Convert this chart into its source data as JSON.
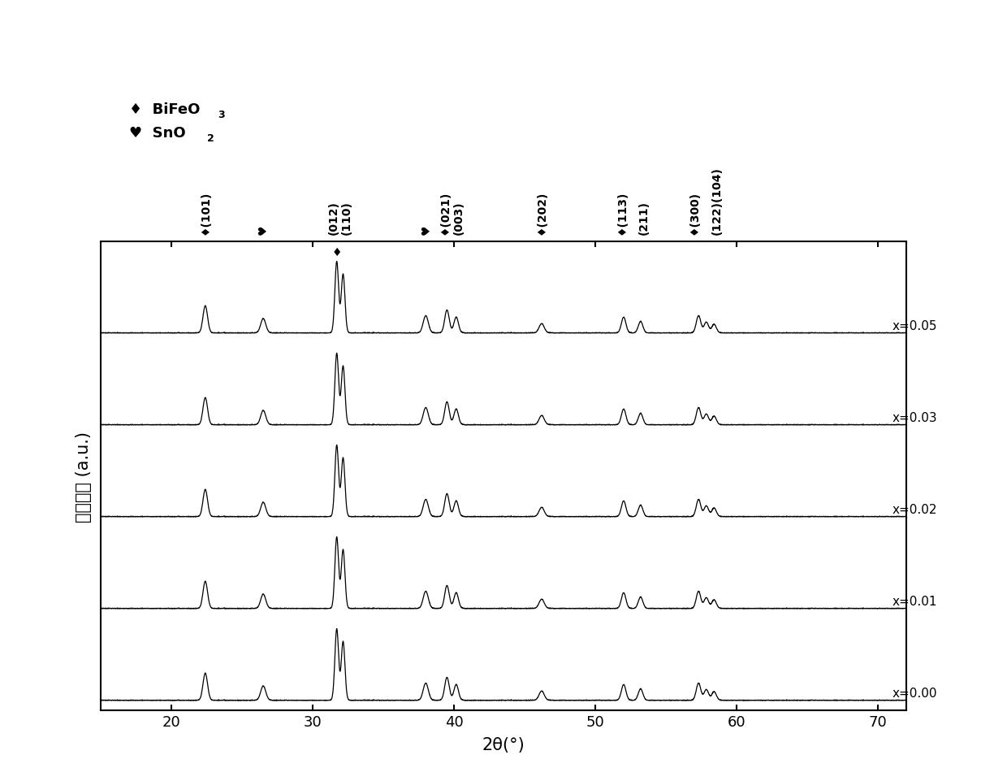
{
  "x_min": 15,
  "x_max": 72,
  "xlabel": "2θ(°)",
  "ylabel": "相对强度 (a.u.)",
  "background_color": "#ffffff",
  "line_color": "#000000",
  "series_labels": [
    "x=0.00",
    "x=0.01",
    "x=0.02",
    "x=0.03",
    "x=0.05"
  ],
  "offsets": [
    0.0,
    1.4,
    2.8,
    4.2,
    5.6
  ],
  "peak_positions": [
    22.4,
    26.5,
    31.7,
    32.15,
    38.0,
    39.5,
    40.15,
    46.2,
    52.0,
    53.2,
    57.3,
    57.85,
    58.4
  ],
  "peak_heights": [
    0.38,
    0.2,
    1.0,
    0.82,
    0.24,
    0.32,
    0.22,
    0.13,
    0.22,
    0.16,
    0.24,
    0.15,
    0.12
  ],
  "peak_widths": [
    0.16,
    0.18,
    0.13,
    0.13,
    0.18,
    0.16,
    0.16,
    0.18,
    0.16,
    0.16,
    0.16,
    0.16,
    0.16
  ],
  "annotation_config": [
    {
      "x": 22.4,
      "text": "♦(101)",
      "xoff": 0.0
    },
    {
      "x": 26.5,
      "text": "♥",
      "xoff": 0.0
    },
    {
      "x": 31.7,
      "text": "(012)",
      "xoff": -0.22
    },
    {
      "x": 32.15,
      "text": "(110)",
      "xoff": 0.22
    },
    {
      "x": 38.0,
      "text": "♥",
      "xoff": 0.0
    },
    {
      "x": 39.5,
      "text": "♦(021)",
      "xoff": -0.15
    },
    {
      "x": 40.15,
      "text": "(003)",
      "xoff": 0.2
    },
    {
      "x": 46.2,
      "text": "♦(202)",
      "xoff": 0.0
    },
    {
      "x": 52.0,
      "text": "♦(113)",
      "xoff": -0.15
    },
    {
      "x": 53.2,
      "text": "(211)",
      "xoff": 0.2
    },
    {
      "x": 57.3,
      "text": "♦(300)",
      "xoff": -0.3
    },
    {
      "x": 58.1,
      "text": "(122)(104)",
      "xoff": 0.5
    }
  ],
  "legend": [
    {
      "symbol": "♦",
      "label": "BiFeO",
      "sub": "3"
    },
    {
      "symbol": "♥",
      "label": "SnO",
      "sub": "2"
    }
  ]
}
